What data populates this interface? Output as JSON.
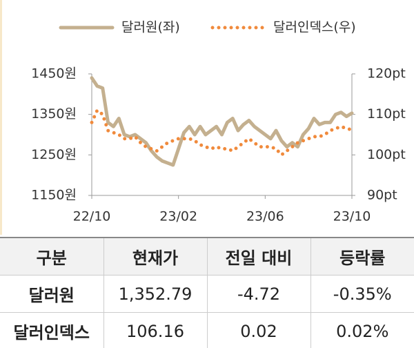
{
  "chart_data": {
    "type": "line",
    "x": [
      0,
      0.25,
      0.5,
      0.75,
      1,
      1.25,
      1.5,
      1.75,
      2,
      2.25,
      2.5,
      2.75,
      3,
      3.25,
      3.5,
      3.75,
      4,
      4.25,
      4.5,
      4.75,
      5,
      5.25,
      5.5,
      5.75,
      6,
      6.25,
      6.5,
      6.75,
      7,
      7.25,
      7.5,
      7.75,
      8,
      8.25,
      8.5,
      8.75,
      9,
      9.25,
      9.5,
      9.75,
      10,
      10.25,
      10.5,
      10.75,
      11,
      11.25,
      11.5,
      11.75,
      12
    ],
    "series": [
      {
        "name": "달러원(좌)",
        "color": "#c4b08f",
        "axis": "y",
        "values": [
          1440,
          1420,
          1415,
          1330,
          1320,
          1340,
          1300,
          1295,
          1300,
          1290,
          1280,
          1260,
          1245,
          1235,
          1230,
          1225,
          1265,
          1305,
          1320,
          1300,
          1320,
          1300,
          1310,
          1320,
          1300,
          1330,
          1340,
          1310,
          1325,
          1335,
          1320,
          1310,
          1300,
          1290,
          1310,
          1285,
          1270,
          1280,
          1270,
          1300,
          1315,
          1340,
          1325,
          1330,
          1330,
          1350,
          1355,
          1345,
          1353
        ]
      },
      {
        "name": "달러인덱스(우)",
        "color": "#f08a3c",
        "axis": "y2",
        "values": [
          108,
          111,
          110,
          106,
          105.5,
          105,
          104,
          104,
          104.5,
          103,
          102,
          101.5,
          101,
          102,
          103,
          103.5,
          104,
          104,
          104,
          103.5,
          102.5,
          102,
          101.5,
          102,
          101.5,
          101.5,
          101,
          102,
          103,
          104,
          103,
          102,
          102,
          102,
          101.5,
          100,
          101,
          102,
          103,
          103.5,
          104,
          104.5,
          104.5,
          105,
          106,
          106.5,
          107,
          106.5,
          106.2
        ]
      }
    ],
    "xlim": [
      0,
      12
    ],
    "xticks": [
      {
        "value": 0,
        "label": "22/10"
      },
      {
        "value": 4,
        "label": "23/02"
      },
      {
        "value": 8,
        "label": "23/06"
      },
      {
        "value": 12,
        "label": "23/10"
      }
    ],
    "ylim": [
      1150,
      1450
    ],
    "yticks": [
      {
        "value": 1150,
        "label": "1150원"
      },
      {
        "value": 1250,
        "label": "1250원"
      },
      {
        "value": 1350,
        "label": "1350원"
      },
      {
        "value": 1450,
        "label": "1450원"
      }
    ],
    "y2lim": [
      90,
      120
    ],
    "y2ticks": [
      {
        "value": 90,
        "label": "90pt"
      },
      {
        "value": 100,
        "label": "100pt"
      },
      {
        "value": 110,
        "label": "110pt"
      },
      {
        "value": 120,
        "label": "120pt"
      }
    ]
  },
  "table": {
    "header": [
      "구분",
      "현재가",
      "전일 대비",
      "등락률"
    ],
    "rows": [
      [
        "달러원",
        "1,352.79",
        "-4.72",
        "-0.35%"
      ],
      [
        "달러인덱스",
        "106.16",
        "0.02",
        "0.02%"
      ]
    ]
  }
}
